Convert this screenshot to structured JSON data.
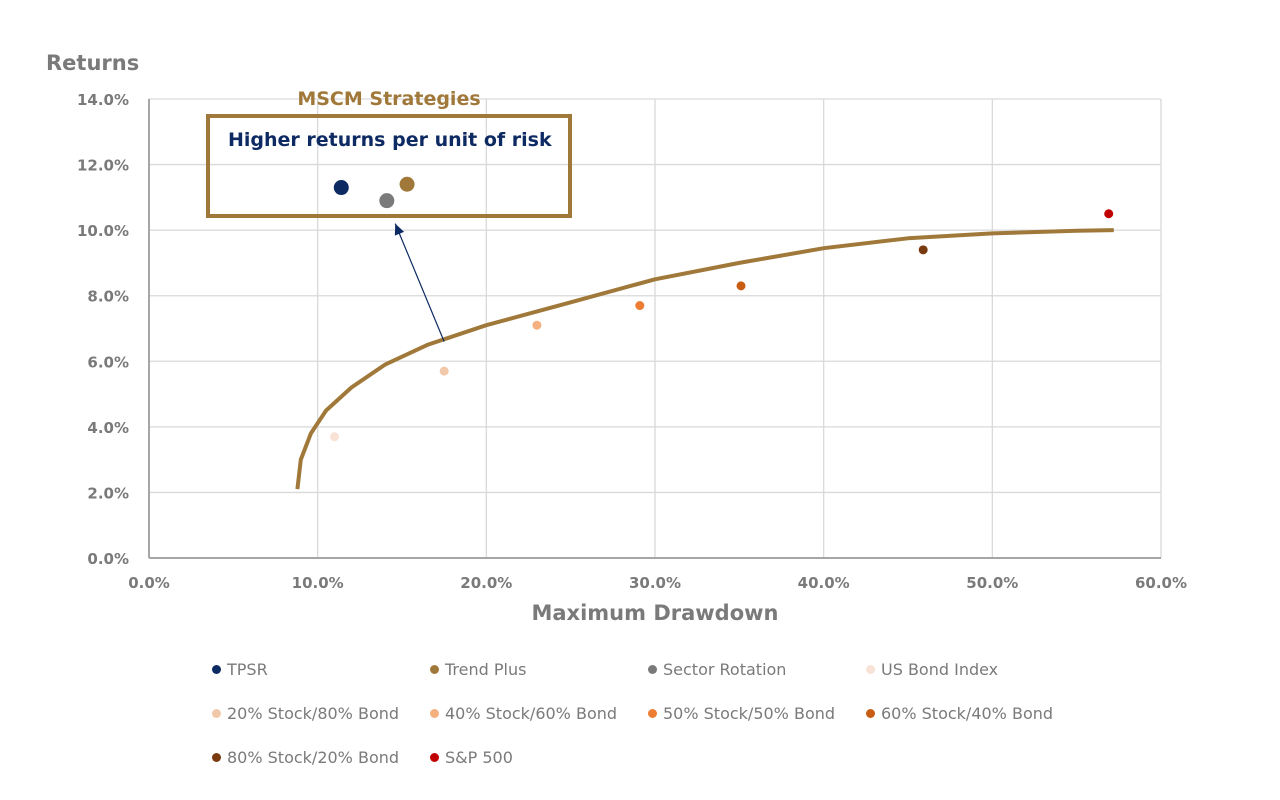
{
  "chart_data": {
    "type": "scatter",
    "ylabel": "Returns",
    "xlabel": "Maximum Drawdown",
    "xlim": [
      0,
      60
    ],
    "ylim": [
      0,
      14
    ],
    "x_ticks": [
      "0.0%",
      "10.0%",
      "20.0%",
      "30.0%",
      "40.0%",
      "50.0%",
      "60.0%"
    ],
    "y_ticks": [
      "0.0%",
      "2.0%",
      "4.0%",
      "6.0%",
      "8.0%",
      "10.0%",
      "12.0%",
      "14.0%"
    ],
    "grid": true,
    "legend_position": "bottom",
    "series": [
      {
        "name": "TPSR",
        "x": 11.4,
        "y": 11.3,
        "color": "#0d2a63",
        "highlight": true
      },
      {
        "name": "Trend Plus",
        "x": 15.3,
        "y": 11.4,
        "color": "#a0793a",
        "highlight": true
      },
      {
        "name": "Sector Rotation",
        "x": 14.1,
        "y": 10.9,
        "color": "#7a7a7a",
        "highlight": true
      },
      {
        "name": "US Bond Index",
        "x": 11.0,
        "y": 3.7,
        "color": "#f8e2d6",
        "highlight": false
      },
      {
        "name": "20% Stock/80% Bond",
        "x": 17.5,
        "y": 5.7,
        "color": "#f2c8aa",
        "highlight": false
      },
      {
        "name": "40% Stock/60% Bond",
        "x": 23.0,
        "y": 7.1,
        "color": "#f4b07e",
        "highlight": false
      },
      {
        "name": "50% Stock/50% Bond",
        "x": 29.1,
        "y": 7.7,
        "color": "#ee7d34",
        "highlight": false
      },
      {
        "name": "60% Stock/40% Bond",
        "x": 35.1,
        "y": 8.3,
        "color": "#c85c12",
        "highlight": false
      },
      {
        "name": "80% Stock/20% Bond",
        "x": 45.9,
        "y": 9.4,
        "color": "#7a3a10",
        "highlight": false
      },
      {
        "name": "S&P 500",
        "x": 56.9,
        "y": 10.5,
        "color": "#c00000",
        "highlight": false
      }
    ],
    "frontier_curve": {
      "color": "#a0793a",
      "points": [
        [
          8.8,
          2.1
        ],
        [
          9.0,
          3.0
        ],
        [
          9.6,
          3.8
        ],
        [
          10.5,
          4.5
        ],
        [
          12.0,
          5.2
        ],
        [
          14.0,
          5.9
        ],
        [
          16.5,
          6.5
        ],
        [
          20.0,
          7.1
        ],
        [
          25.0,
          7.8
        ],
        [
          30.0,
          8.5
        ],
        [
          35.0,
          9.0
        ],
        [
          40.0,
          9.45
        ],
        [
          45.0,
          9.75
        ],
        [
          50.0,
          9.9
        ],
        [
          55.0,
          9.98
        ],
        [
          57.2,
          10.0
        ]
      ]
    },
    "annotations": {
      "box_title": "MSCM Strategies",
      "box_text": "Higher returns per unit of risk",
      "box_color": "#a0793a",
      "box_text_color": "#0d2a63",
      "arrow_from": [
        17.5,
        6.6
      ],
      "arrow_to": [
        14.6,
        10.2
      ],
      "arrow_color": "#0d2a63"
    }
  },
  "colors": {
    "axis_text": "#7a7a7a",
    "grid": "#d9d9d9",
    "axis_line": "#a6a6a6"
  }
}
